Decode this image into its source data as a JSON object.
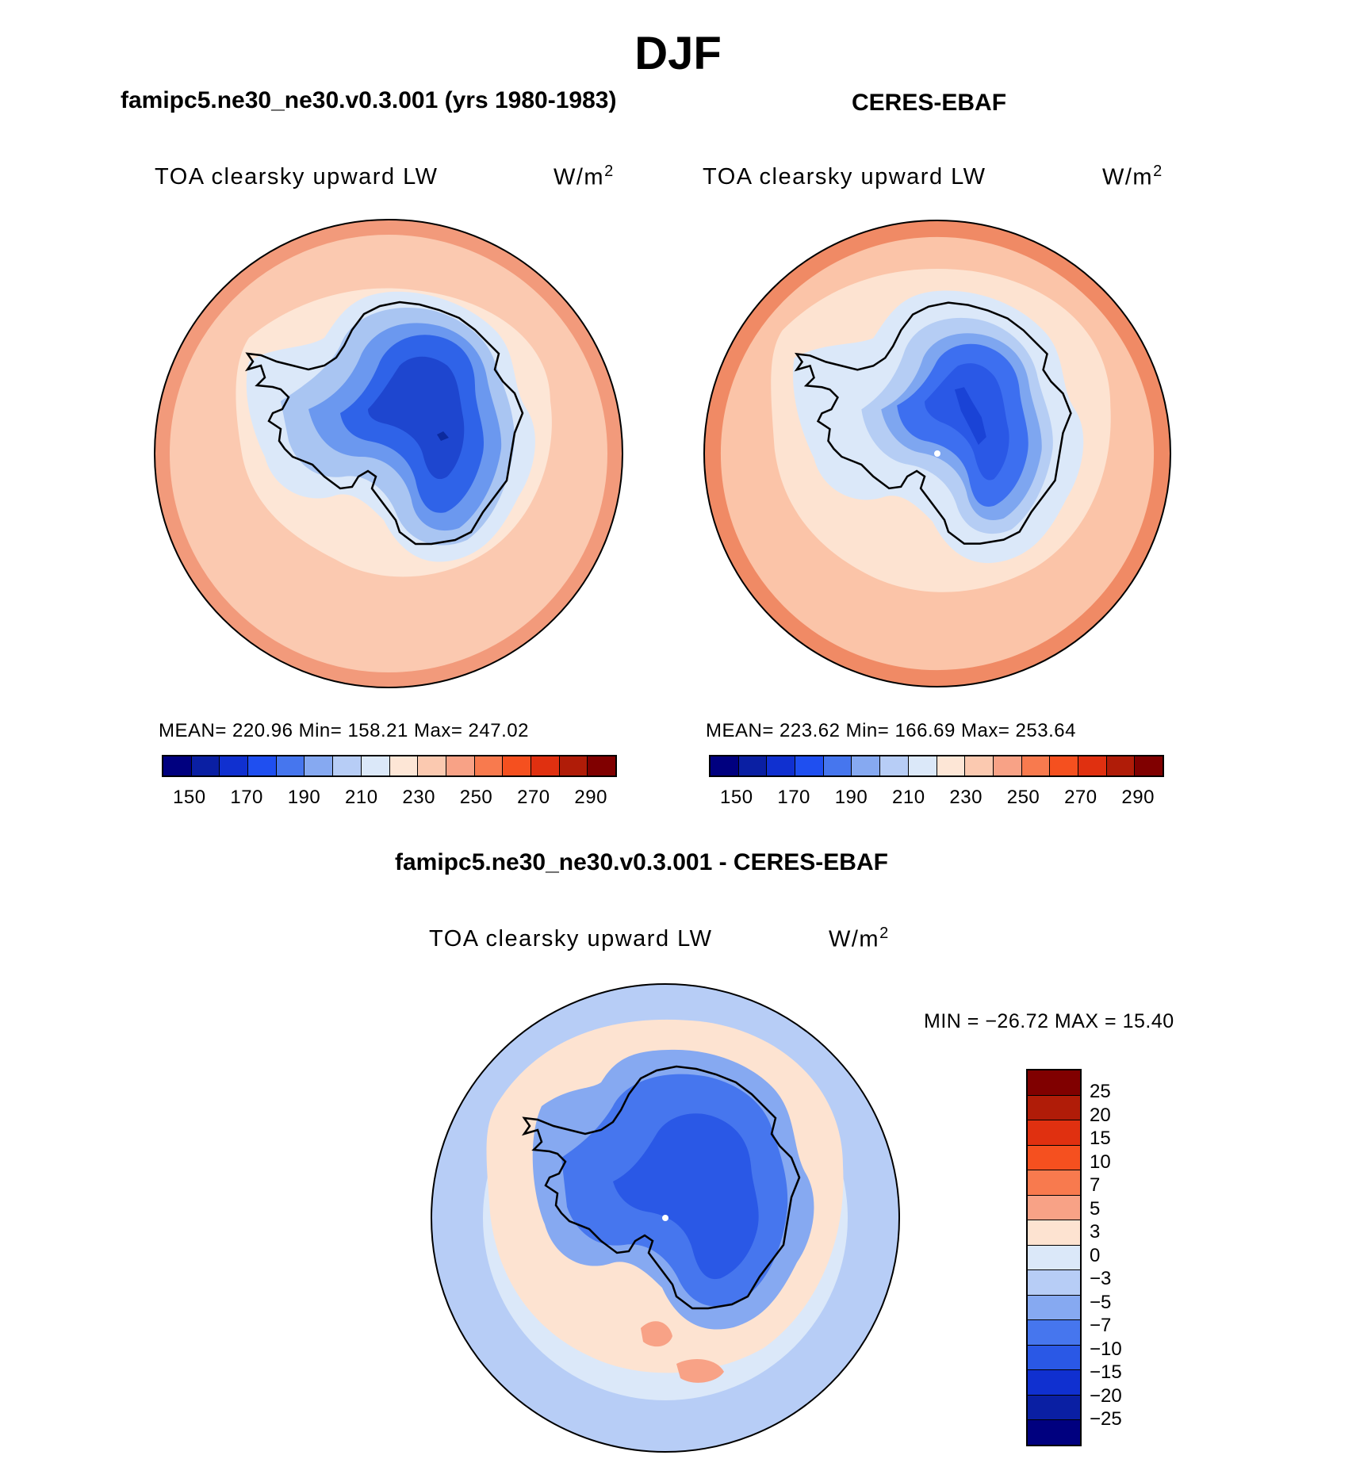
{
  "season": "DJF",
  "panels": [
    {
      "title": "famipc5.ne30_ne30.v0.3.001 (yrs 1980-1983)",
      "field": "TOA clearsky upward LW",
      "units": "W/m",
      "units_sup": "2",
      "stats": "MEAN= 220.96   Min= 158.21   Max= 247.02",
      "colors": {
        "ocean_outer": "#f29a7b",
        "ocean": "#fbc9b0",
        "seaice": "#fde6d6",
        "coast": "#dbe8f9",
        "land1": "#a9c5f2",
        "land2": "#6b98ef",
        "land3": "#2f63e8",
        "land4": "#1e46cf",
        "core": "#0c2a9e"
      }
    },
    {
      "title": "CERES-EBAF",
      "field": "TOA clearsky upward LW",
      "units": "W/m",
      "units_sup": "2",
      "stats": "MEAN= 223.62   Min= 166.69   Max= 253.64",
      "colors": {
        "ocean_outer": "#f08a65",
        "ocean": "#fbc4a8",
        "seaice": "#fde3d1",
        "coast": "#dbe8f9",
        "land1": "#b5cdf4",
        "land2": "#7ea6f0",
        "land3": "#3d6ff0",
        "land4": "#2a58e6",
        "core": "#1a43d6"
      }
    }
  ],
  "shared_colorbar": {
    "colors": [
      "#00007f",
      "#0a1fa3",
      "#1030d0",
      "#1f4ff0",
      "#4676ee",
      "#86a9f1",
      "#b7cdf6",
      "#dbe8f9",
      "#fde6d6",
      "#fbc9b0",
      "#f8a286",
      "#f87a4e",
      "#f5501f",
      "#e03010",
      "#b01c08",
      "#800000"
    ],
    "labels": [
      "150",
      "170",
      "190",
      "210",
      "230",
      "250",
      "270",
      "290"
    ]
  },
  "difference": {
    "title": "famipc5.ne30_ne30.v0.3.001 - CERES-EBAF",
    "field": "TOA clearsky upward LW",
    "units": "W/m",
    "units_sup": "2",
    "minmax": "MIN = −26.72 MAX =  15.40",
    "colors": [
      "#800000",
      "#b01c08",
      "#e03010",
      "#f5501f",
      "#f87a4e",
      "#f8a286",
      "#fde3d1",
      "#dbe8f9",
      "#b7cdf6",
      "#86a9f1",
      "#4676ee",
      "#2a58e6",
      "#1030d0",
      "#0a1fa3",
      "#00007f"
    ],
    "labels": [
      "25",
      "20",
      "15",
      "10",
      "7",
      "5",
      "3",
      "0",
      "−3",
      "−5",
      "−7",
      "−10",
      "−15",
      "−20",
      "−25"
    ],
    "map_colors": {
      "outer": "#b7cdf6",
      "ring": "#dbe8f9",
      "warm": "#fde3d1",
      "hot": "#f8a286",
      "coast": "#86a9f1",
      "land": "#4676ee",
      "core": "#2a58e6"
    }
  }
}
